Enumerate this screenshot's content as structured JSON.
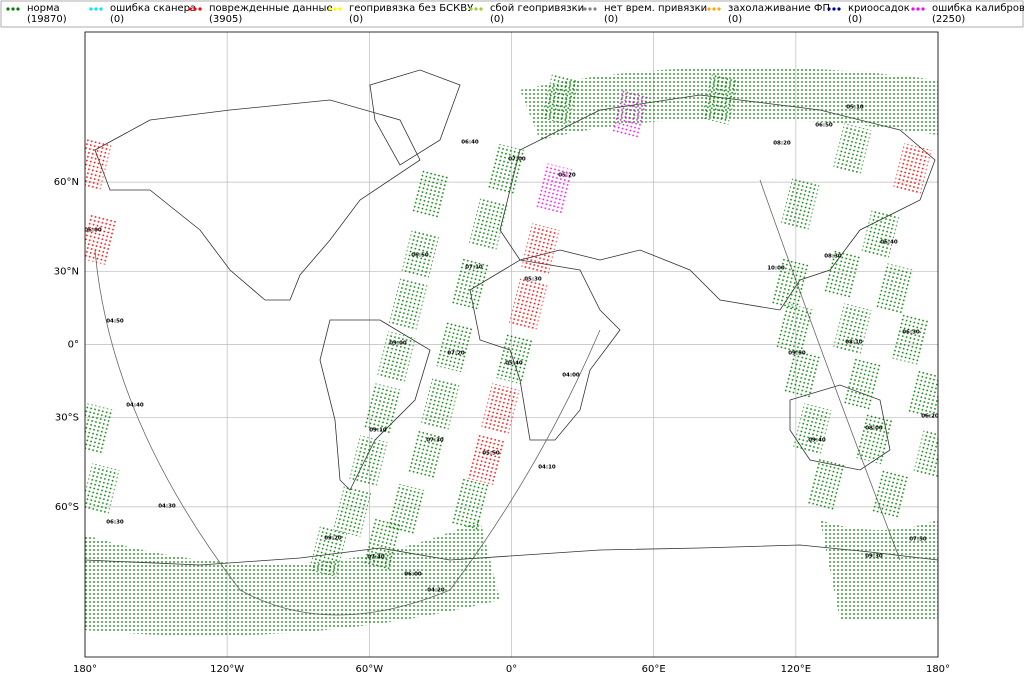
{
  "legend": [
    {
      "label": "норма",
      "count": "(19870)",
      "color": "#008000"
    },
    {
      "label": "ошибка сканера",
      "count": "(0)",
      "color": "#00e5ff"
    },
    {
      "label": "поврежденные данные",
      "count": "(3905)",
      "color": "#ff0000"
    },
    {
      "label": "геопривязка без БСКВУ",
      "count": "(0)",
      "color": "#ffff00"
    },
    {
      "label": "сбой геопривязки",
      "count": "(0)",
      "color": "#9acd32"
    },
    {
      "label": "нет врем. привязки",
      "count": "(0)",
      "color": "#808080"
    },
    {
      "label": "захолаживание ФП",
      "count": "(0)",
      "color": "#ffa500"
    },
    {
      "label": "криоосадок",
      "count": "(0)",
      "color": "#00008b"
    },
    {
      "label": "ошибка калибровки",
      "count": "(2250)",
      "color": "#ff00ff"
    }
  ],
  "map": {
    "xlim": [
      -180,
      180
    ],
    "ylim": [
      -90,
      90
    ],
    "xticks": [
      {
        "value": -180,
        "label": "180°"
      },
      {
        "value": -120,
        "label": "120°W"
      },
      {
        "value": -60,
        "label": "60°W"
      },
      {
        "value": 0,
        "label": "0°"
      },
      {
        "value": 60,
        "label": "60°E"
      },
      {
        "value": 120,
        "label": "120°E"
      },
      {
        "value": 180,
        "label": "180°"
      }
    ],
    "yticks": [
      {
        "value": 60,
        "label": "60°N"
      },
      {
        "value": 30,
        "label": "30°N"
      },
      {
        "value": 0,
        "label": "0°"
      },
      {
        "value": -30,
        "label": "30°S"
      },
      {
        "value": -60,
        "label": "60°S"
      }
    ],
    "grid": true,
    "time_labels": [
      "06:00",
      "04:50",
      "04:40",
      "04:30",
      "06:30",
      "06:40",
      "07:00",
      "06:50",
      "07:10",
      "09:00",
      "07:20",
      "09:10",
      "07:30",
      "05:20",
      "05:30",
      "05:40",
      "04:00",
      "05:50",
      "04:10",
      "09:20",
      "07:40",
      "06:00",
      "04:20",
      "05:10",
      "06:50",
      "08:20",
      "06:40",
      "08:30",
      "10:00",
      "06:30",
      "08:10",
      "09:50",
      "06:20",
      "08:00",
      "09:40",
      "07:50",
      "09:30"
    ]
  }
}
